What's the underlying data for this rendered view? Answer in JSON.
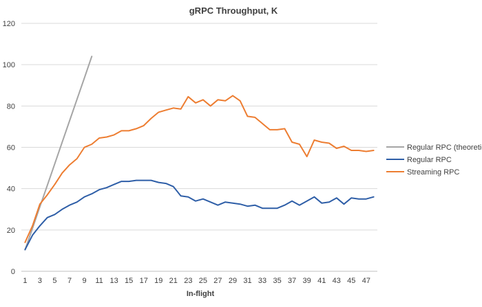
{
  "chart_data": {
    "type": "line",
    "title": "gRPC Throughput, K",
    "xlabel": "In-flight",
    "ylabel": "",
    "ylim": [
      0,
      120
    ],
    "y_ticks": [
      0,
      20,
      40,
      60,
      80,
      100,
      120
    ],
    "y_tick_labels": [
      "0",
      "20",
      "40",
      "60",
      "80",
      "100",
      "120"
    ],
    "x_ticks": [
      1,
      3,
      5,
      7,
      9,
      11,
      13,
      15,
      17,
      19,
      21,
      23,
      25,
      27,
      29,
      31,
      33,
      35,
      37,
      39,
      41,
      43,
      45,
      47
    ],
    "x_tick_labels": [
      "1",
      "3",
      "5",
      "7",
      "9",
      "11",
      "13",
      "15",
      "17",
      "19",
      "21",
      "23",
      "25",
      "27",
      "29",
      "31",
      "33",
      "35",
      "37",
      "39",
      "41",
      "43",
      "45",
      "47"
    ],
    "grid": "horizontal",
    "legend_position": "right",
    "series": [
      {
        "name": "Regular RPC (theoretical)",
        "color": "#a5a5a5",
        "x": [
          1,
          2,
          3,
          4,
          5,
          6,
          7,
          8,
          9,
          10
        ],
        "values": [
          10.4,
          20.8,
          31.2,
          41.6,
          52,
          62.4,
          72.8,
          83.2,
          93.6,
          104
        ]
      },
      {
        "name": "Regular RPC",
        "color": "#2e5ea7",
        "x": [
          1,
          2,
          3,
          4,
          5,
          6,
          7,
          8,
          9,
          10,
          11,
          12,
          13,
          14,
          15,
          16,
          17,
          18,
          19,
          20,
          21,
          22,
          23,
          24,
          25,
          26,
          27,
          28,
          29,
          30,
          31,
          32,
          33,
          34,
          35,
          36,
          37,
          38,
          39,
          40,
          41,
          42,
          43,
          44,
          45,
          46,
          47,
          48
        ],
        "values": [
          10.5,
          17.5,
          22,
          26,
          27.5,
          30,
          32,
          33.5,
          36,
          37.5,
          39.5,
          40.5,
          42,
          43.5,
          43.5,
          44,
          44,
          44,
          43,
          42.5,
          41,
          36.5,
          36,
          34,
          35,
          33.5,
          32,
          33.5,
          33,
          32.5,
          31.5,
          32,
          30.5,
          30.5,
          30.5,
          32,
          34,
          32,
          34,
          36,
          33,
          33.5,
          35.5,
          32.5,
          35.5,
          35,
          35,
          36
        ]
      },
      {
        "name": "Streaming RPC",
        "color": "#ed7d31",
        "x": [
          1,
          2,
          3,
          4,
          5,
          6,
          7,
          8,
          9,
          10,
          11,
          12,
          13,
          14,
          15,
          16,
          17,
          18,
          19,
          20,
          21,
          22,
          23,
          24,
          25,
          26,
          27,
          28,
          29,
          30,
          31,
          32,
          33,
          34,
          35,
          36,
          37,
          38,
          39,
          40,
          41,
          42,
          43,
          44,
          45,
          46,
          47,
          48
        ],
        "values": [
          14,
          22,
          32.5,
          37,
          42,
          47.5,
          51.5,
          54.5,
          60,
          61.5,
          64.5,
          65,
          66,
          68,
          68,
          69,
          70.5,
          74,
          77,
          78,
          79,
          78.5,
          84.5,
          81.5,
          83,
          80,
          83,
          82.5,
          85,
          82.5,
          75,
          74.5,
          71.5,
          68.5,
          68.5,
          69,
          62.5,
          61.5,
          55.5,
          63.5,
          62.5,
          62,
          59.5,
          60.5,
          58.5,
          58.5,
          58,
          58.5
        ]
      }
    ]
  }
}
